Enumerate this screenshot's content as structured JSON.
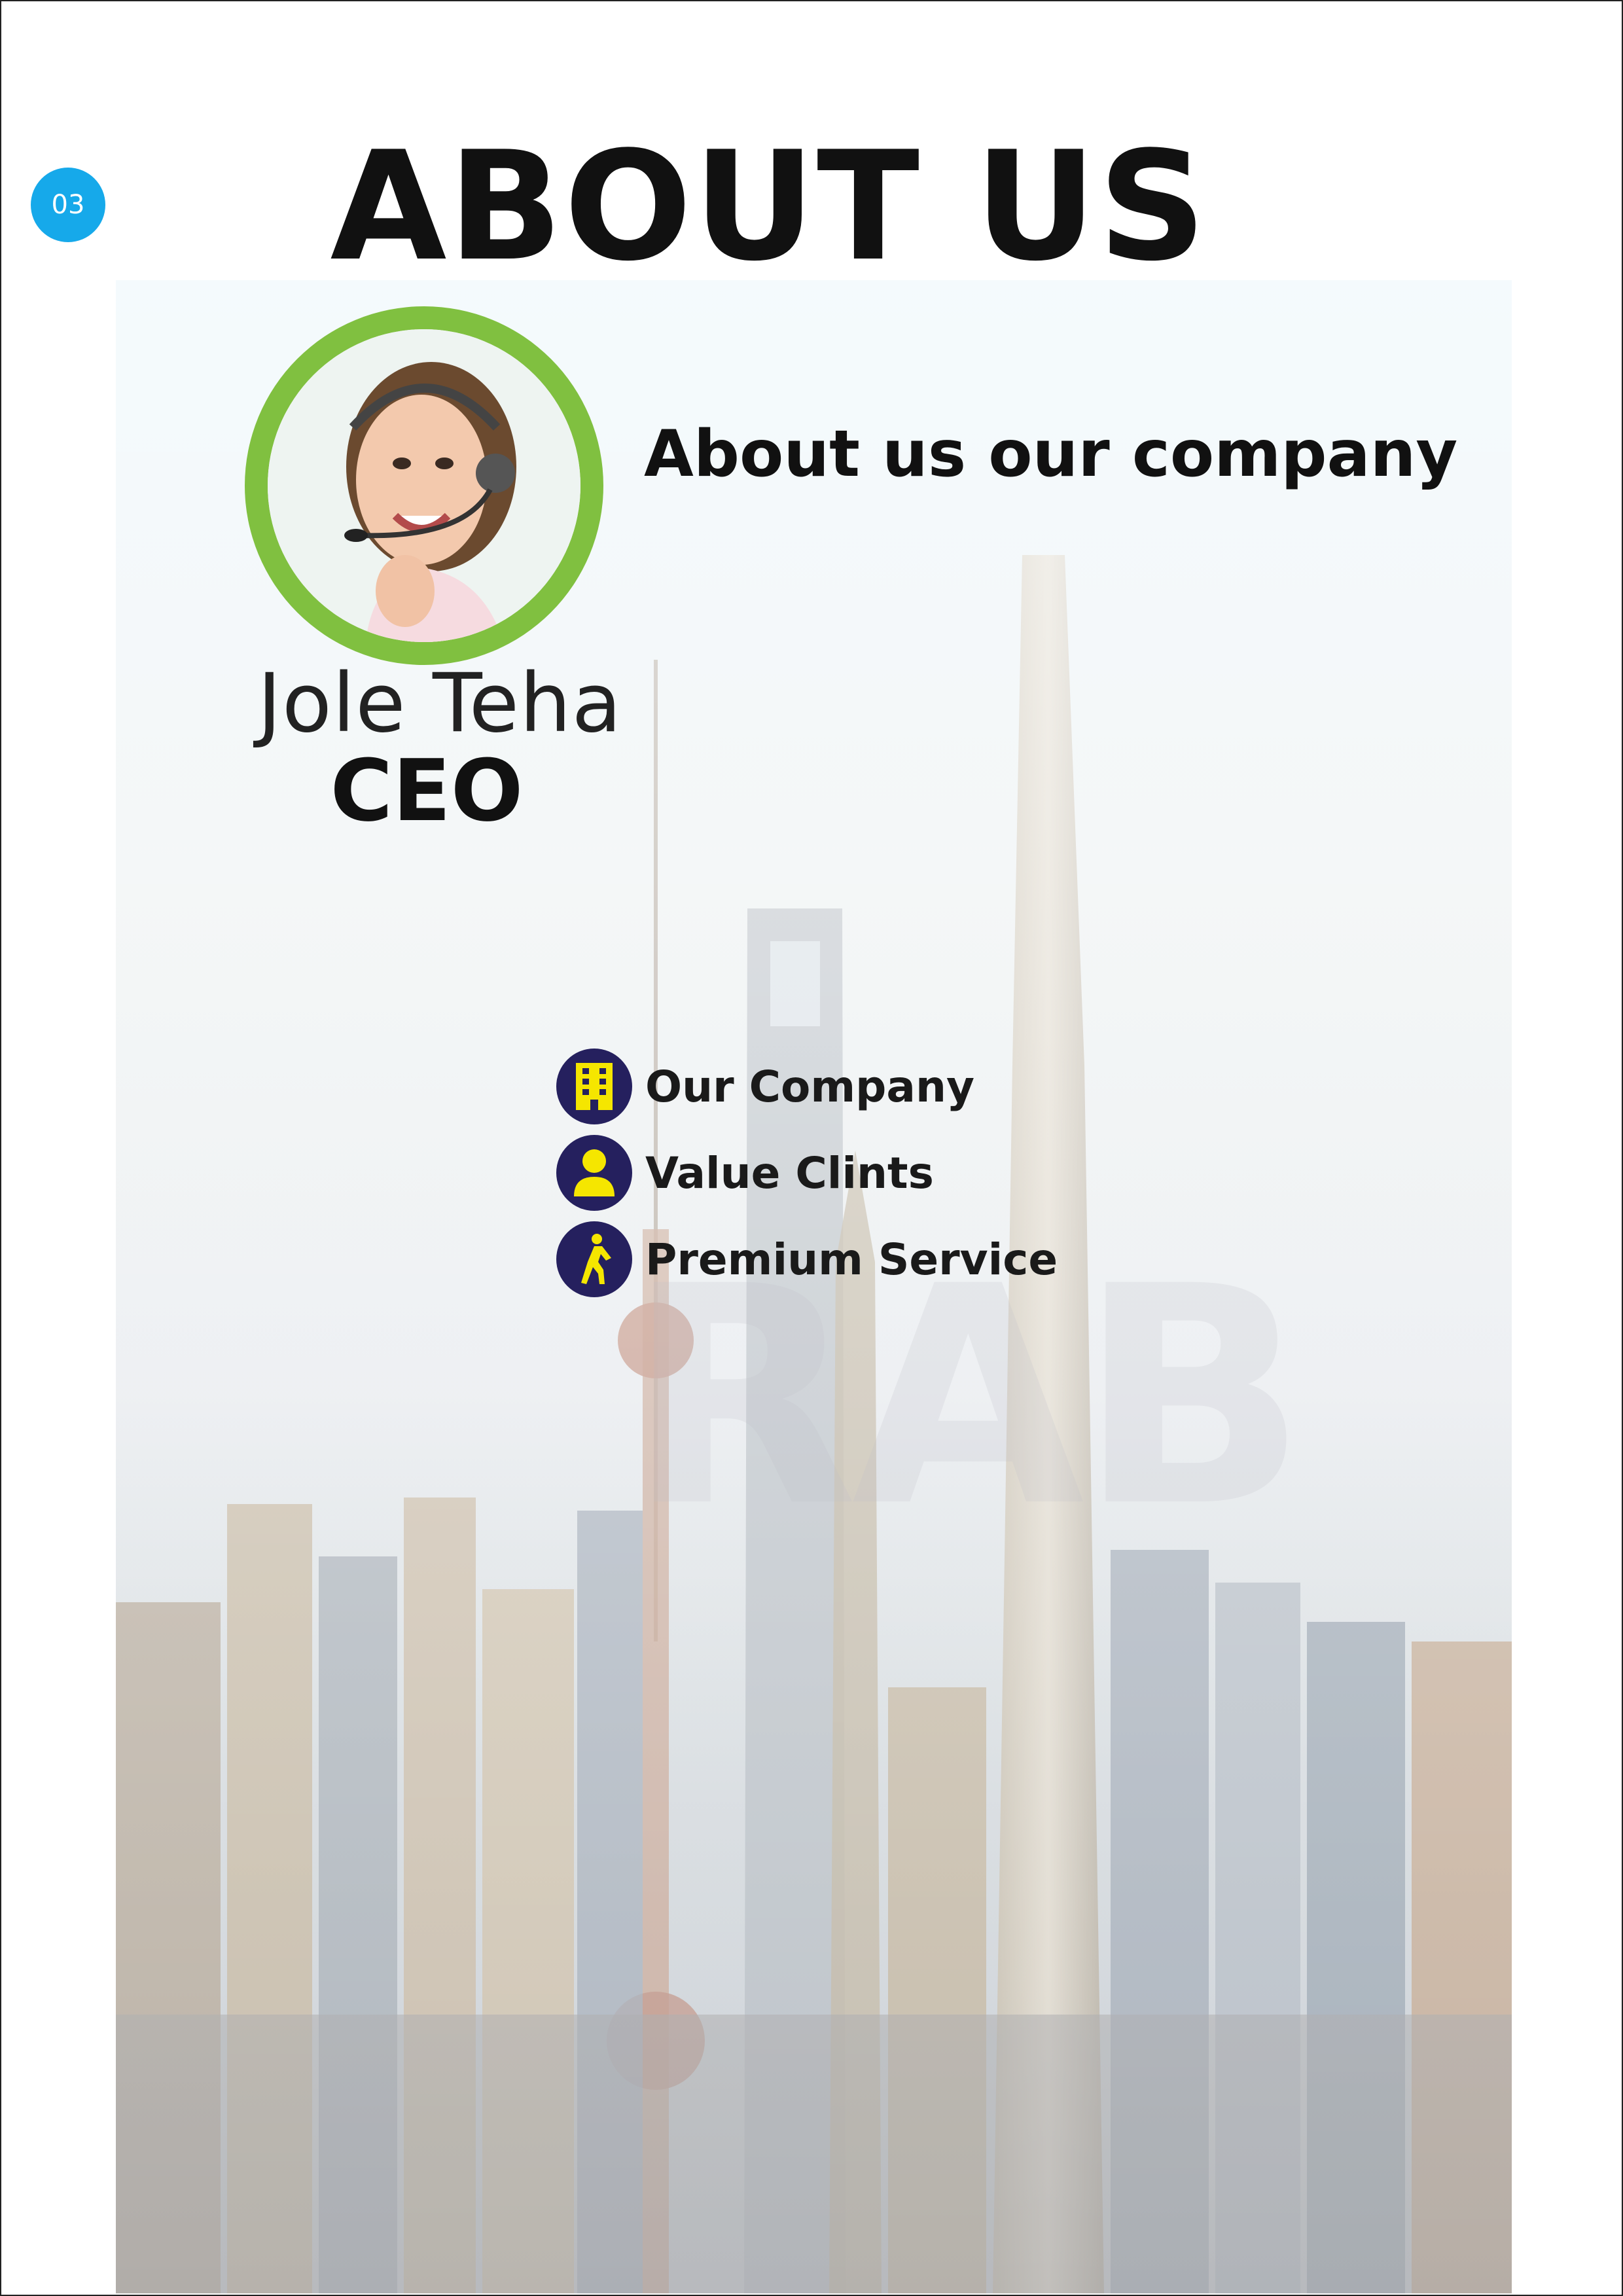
{
  "page_number": "03",
  "title": "ABOUT US",
  "headline": "About us our company",
  "person": {
    "name": "Jole Teha",
    "role": "CEO"
  },
  "watermark": "RAB",
  "features": [
    {
      "icon": "building-icon",
      "label": "Our Company"
    },
    {
      "icon": "user-icon",
      "label": "Value Clints"
    },
    {
      "icon": "walking-icon",
      "label": "Premium Service"
    }
  ],
  "colors": {
    "accent_blue": "#16a9ea",
    "avatar_ring_green": "#80c040",
    "icon_bg_navy": "#25205e",
    "icon_yellow": "#f5e600"
  }
}
